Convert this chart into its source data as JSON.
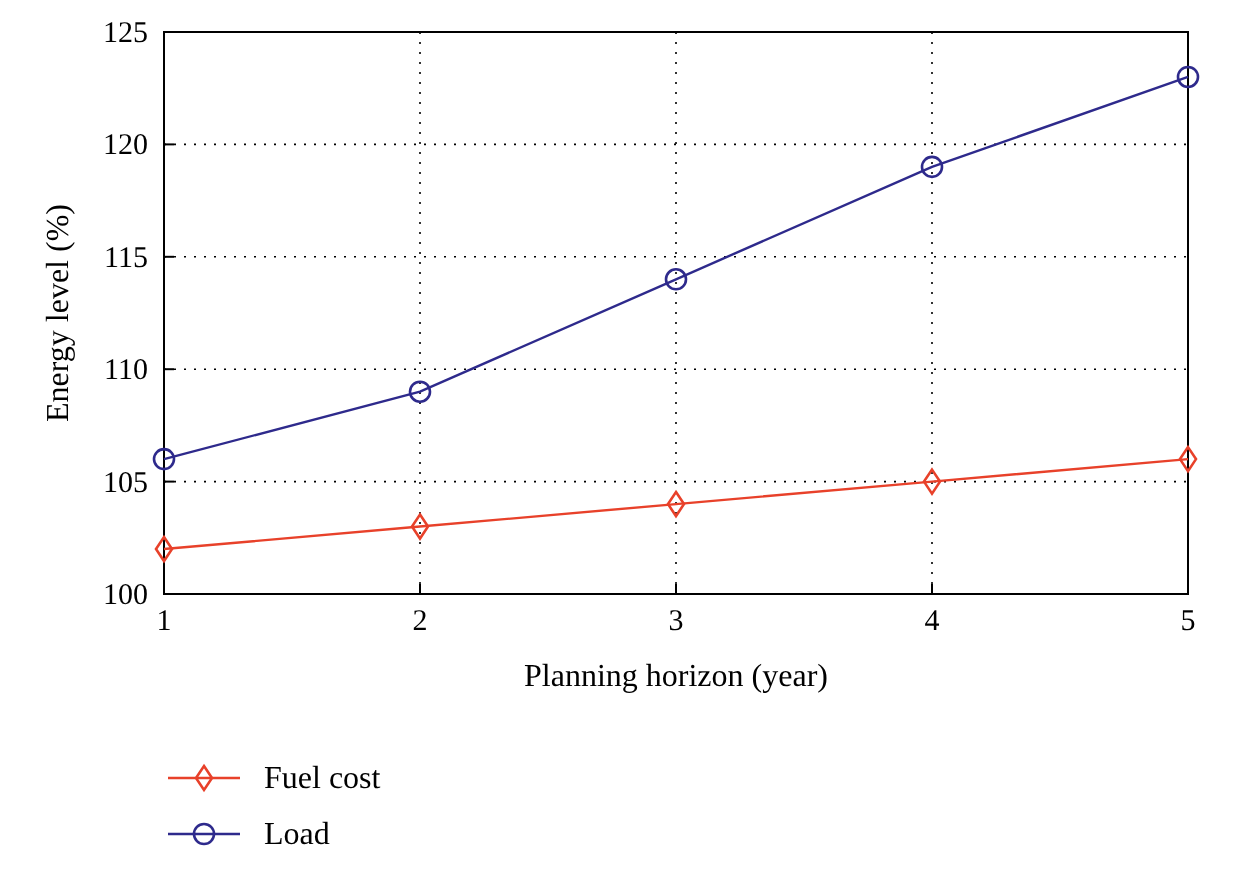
{
  "chart_data": {
    "type": "line",
    "xlabel": "Planning horizon (year)",
    "ylabel": "Energy level (%)",
    "x": [
      1,
      2,
      3,
      4,
      5
    ],
    "xlim": [
      1,
      5
    ],
    "xticks": [
      1,
      2,
      3,
      4,
      5
    ],
    "ylim": [
      100,
      125
    ],
    "yticks": [
      100,
      105,
      110,
      115,
      120,
      125
    ],
    "grid": true,
    "legend": "bottom left",
    "line_style": "solid",
    "series": [
      {
        "name": "Fuel cost",
        "color": "#e8412a",
        "marker": "diamond",
        "values": [
          102,
          103,
          104,
          105,
          106
        ]
      },
      {
        "name": "Load",
        "color": "#2e2a8c",
        "marker": "circle",
        "values": [
          106,
          109,
          114,
          119,
          123
        ]
      }
    ]
  }
}
